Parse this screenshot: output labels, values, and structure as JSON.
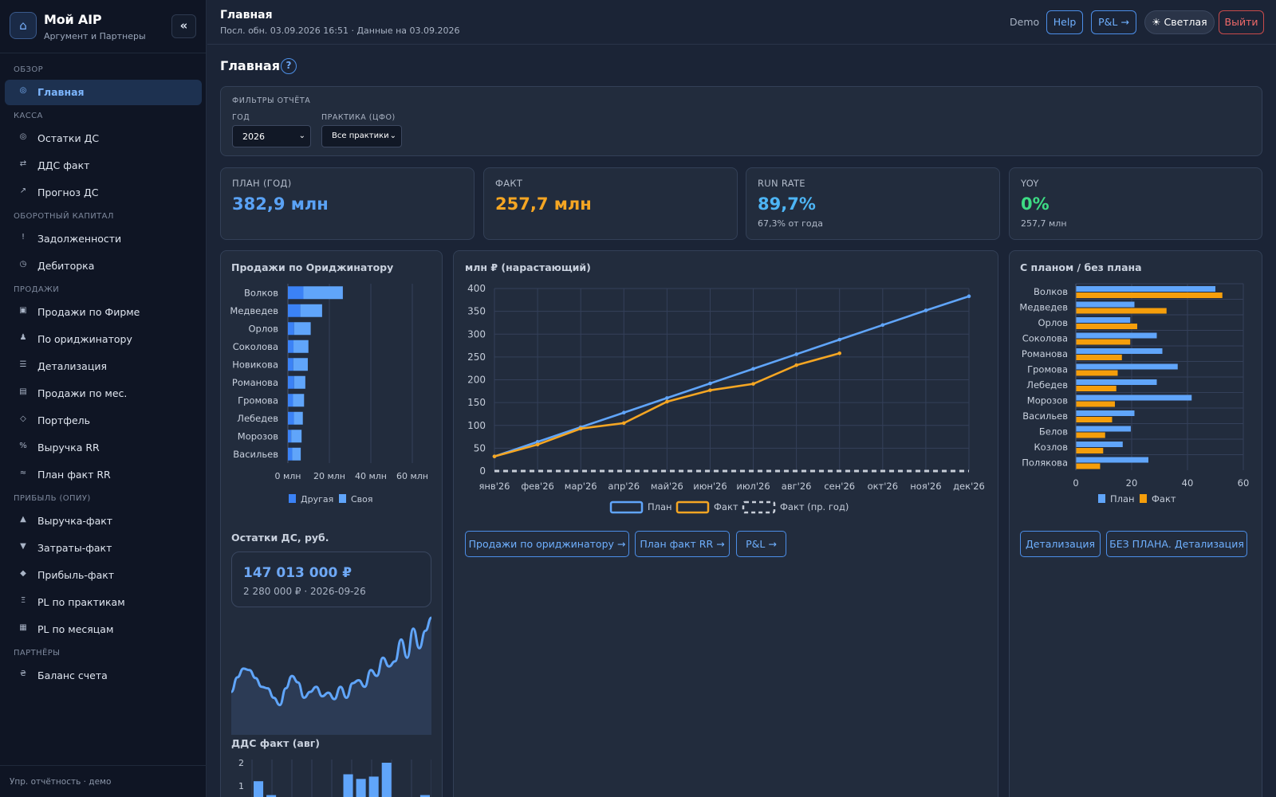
{
  "brand": {
    "title": "Мой AIP",
    "subtitle": "Аргумент и Партнеры",
    "collapse": "«"
  },
  "sidebar": {
    "sections": [
      {
        "title": "ОБЗОР",
        "items": [
          {
            "label": "Главная",
            "icon": "target-icon",
            "active": true
          }
        ]
      },
      {
        "title": "КАССА",
        "items": [
          {
            "label": "Остатки ДС",
            "icon": "coins-icon"
          },
          {
            "label": "ДДС факт",
            "icon": "swap-icon"
          },
          {
            "label": "Прогноз ДС",
            "icon": "trend-icon"
          }
        ]
      },
      {
        "title": "ОБОРОТНЫЙ КАПИТАЛ",
        "items": [
          {
            "label": "Задолженности",
            "icon": "alert-icon"
          },
          {
            "label": "Дебиторка",
            "icon": "clock-icon"
          }
        ]
      },
      {
        "title": "ПРОДАЖИ",
        "items": [
          {
            "label": "Продажи по Фирме",
            "icon": "grid-icon"
          },
          {
            "label": "По ориджинатору",
            "icon": "user-icon"
          },
          {
            "label": "Детализация",
            "icon": "list-icon"
          },
          {
            "label": "Продажи по мес.",
            "icon": "calendar-icon"
          },
          {
            "label": "Портфель",
            "icon": "diamond-icon"
          },
          {
            "label": "Выручка RR",
            "icon": "percent-icon"
          },
          {
            "label": "План факт RR",
            "icon": "wave-icon"
          }
        ]
      },
      {
        "title": "ПРИБЫЛЬ (ОПИУ)",
        "items": [
          {
            "label": "Выручка-факт",
            "icon": "triangle-up-icon"
          },
          {
            "label": "Затраты-факт",
            "icon": "triangle-down-icon"
          },
          {
            "label": "Прибыль-факт",
            "icon": "diamond-fill-icon"
          },
          {
            "label": "PL по практикам",
            "icon": "xi-icon"
          },
          {
            "label": "PL по месяцам",
            "icon": "table-icon"
          }
        ]
      },
      {
        "title": "ПАРТНЁРЫ",
        "items": [
          {
            "label": "Баланс счета",
            "icon": "hryvnia-icon"
          }
        ]
      }
    ],
    "footer": "Упр. отчётность · демо"
  },
  "header": {
    "title": "Главная",
    "updated": "Посл. обн. 03.09.2026 16:51 · Данные на 03.09.2026",
    "demo": "Demo",
    "help": "Help",
    "pl": "P&L →",
    "theme": "Светлая",
    "theme_icon": "sun-icon",
    "logout": "Выйти"
  },
  "page": {
    "title": "Главная",
    "help_mark": "?"
  },
  "filters": {
    "caption": "ФИЛЬТРЫ ОТЧЁТА",
    "year_label": "ГОД",
    "year_value": "2026",
    "practice_label": "ПРАКТИКА (ЦФО)",
    "practice_value": "Все практики"
  },
  "kpis": [
    {
      "label": "ПЛАН (ГОД)",
      "value": "382,9 млн",
      "sub": "",
      "color": "#5aa2f5"
    },
    {
      "label": "ФАКТ",
      "value": "257,7 млн",
      "sub": "",
      "color": "#f5a623"
    },
    {
      "label": "RUN RATE",
      "value": "89,7%",
      "sub": "67,3% от года",
      "color": "#4db5f5"
    },
    {
      "label": "YOY",
      "value": "0%",
      "sub": "257,7 млн",
      "color": "#3ddc84"
    }
  ],
  "originator_card": {
    "title": "Продажи по Ориджинатору"
  },
  "cumulative_card": {
    "title": "млн ₽ (нарастающий)",
    "links": [
      "Продажи по ориджинатору →",
      "План факт RR →",
      "P&L →"
    ]
  },
  "plan_card": {
    "title": "С планом / без плана",
    "links": [
      "Детализация",
      "БЕЗ ПЛАНА. Детализация"
    ]
  },
  "cash_card": {
    "title": "Остатки ДС, руб.",
    "amount": "147 013 000 ₽",
    "sub": "2 280 000 ₽ · 2026-09-26"
  },
  "dds_card": {
    "title": "ДДС факт (авг)"
  },
  "chart_data": [
    {
      "type": "bar",
      "orientation": "horizontal",
      "stacked": true,
      "categories": [
        "Волков",
        "Медведев",
        "Орлов",
        "Соколова",
        "Новикова",
        "Романова",
        "Громова",
        "Лебедев",
        "Морозов",
        "Васильев"
      ],
      "series": [
        {
          "name": "Другая",
          "color": "#3b82f6",
          "values": [
            7.5,
            6,
            3,
            2.7,
            2.6,
            3,
            2.5,
            2.9,
            1.6,
            2.1
          ]
        },
        {
          "name": "Своя",
          "color": "#60a5fa",
          "values": [
            19,
            10.5,
            8,
            7.2,
            7,
            5.4,
            5.3,
            4.3,
            5,
            4.1
          ]
        }
      ],
      "xticks": [
        "0 млн",
        "20 млн",
        "40 млн",
        "60 млн"
      ],
      "xlim": [
        0,
        60
      ],
      "legend": "bottom"
    },
    {
      "type": "line",
      "categories": [
        "янв'26",
        "фев'26",
        "мар'26",
        "апр'26",
        "май'26",
        "июн'26",
        "июл'26",
        "авг'26",
        "сен'26",
        "окт'26",
        "ноя'26",
        "дек'26"
      ],
      "series": [
        {
          "name": "План",
          "color": "#60a5fa",
          "values": [
            32,
            64,
            96,
            128,
            160,
            192,
            224,
            256,
            288,
            320,
            352,
            383
          ]
        },
        {
          "name": "Факт",
          "color": "#f5a623",
          "values": [
            32,
            58,
            93,
            105,
            152,
            177,
            191,
            232,
            258,
            null,
            null,
            null
          ]
        },
        {
          "name": "Факт (пр. год)",
          "color": "#c8ced8",
          "dashed": true,
          "values": [
            0,
            0,
            0,
            0,
            0,
            0,
            0,
            0,
            0,
            0,
            0,
            0
          ]
        }
      ],
      "yticks": [
        0,
        50,
        100,
        150,
        200,
        250,
        300,
        350,
        400
      ],
      "ylim": [
        0,
        400
      ],
      "grid": true,
      "legend": "bottom"
    },
    {
      "type": "bar",
      "orientation": "horizontal",
      "categories": [
        "Волков",
        "Медведев",
        "Орлов",
        "Соколова",
        "Романова",
        "Громова",
        "Лебедев",
        "Морозов",
        "Васильев",
        "Белов",
        "Козлов",
        "Полякова"
      ],
      "series": [
        {
          "name": "План",
          "color": "#60a5fa",
          "values": [
            50,
            21,
            19.5,
            29,
            31,
            36.5,
            29,
            41.5,
            21,
            19.7,
            16.8,
            26
          ]
        },
        {
          "name": "Факт",
          "color": "#f59e0b",
          "values": [
            52.5,
            32.5,
            22,
            19.5,
            16.5,
            15,
            14.5,
            14,
            13,
            10.5,
            9.8,
            8.7
          ]
        }
      ],
      "xticks": [
        "0",
        "20",
        "40",
        "60"
      ],
      "xlim": [
        0,
        60
      ],
      "legend": "bottom"
    },
    {
      "type": "area",
      "values": [
        48,
        68,
        80,
        78,
        67,
        55,
        53,
        40,
        30,
        53,
        70,
        61,
        40,
        48,
        55,
        42,
        47,
        38,
        55,
        40,
        60,
        64,
        55,
        78,
        70,
        95,
        83,
        90,
        120,
        95,
        135,
        108,
        132,
        150
      ]
    },
    {
      "type": "bar",
      "yticks": [
        1,
        2
      ],
      "ylim": [
        0,
        2
      ],
      "values": [
        1.2,
        0.6,
        0,
        0,
        0,
        0,
        0,
        1.5,
        1.3,
        1.4,
        2.0,
        0,
        0,
        0.6
      ]
    }
  ]
}
